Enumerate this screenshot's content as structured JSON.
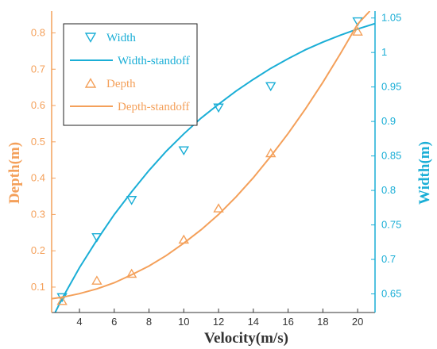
{
  "chart_data": {
    "type": "scatter",
    "xlabel": "Velocity(m/s)",
    "ylabel_left": "Depth(m)",
    "ylabel_right": "Width(m)",
    "xlim": [
      2.4,
      21
    ],
    "ylim_left": [
      0.03,
      0.86
    ],
    "ylim_right": [
      0.623,
      1.06
    ],
    "x_ticks": [
      4,
      6,
      8,
      10,
      12,
      14,
      16,
      18,
      20
    ],
    "x_tick_labels": [
      "4",
      "6",
      "8",
      "10",
      "12",
      "14",
      "16",
      "18",
      "20"
    ],
    "y_left_ticks": [
      0.1,
      0.2,
      0.3,
      0.4,
      0.5,
      0.6,
      0.7,
      0.8
    ],
    "y_left_tick_labels": [
      "0.1",
      "0.2",
      "0.3",
      "0.4",
      "0.5",
      "0.6",
      "0.7",
      "0.8"
    ],
    "y_right_ticks": [
      0.65,
      0.7,
      0.75,
      0.8,
      0.85,
      0.9,
      0.95,
      1,
      1.05
    ],
    "y_right_tick_labels": [
      "0.65",
      "0.7",
      "0.75",
      "0.8",
      "0.85",
      "0.9",
      "0.95",
      "1",
      "1.05"
    ],
    "grid": false,
    "legend_position": "top-left",
    "colors": {
      "depth": "#f4a05a",
      "width": "#1aaed6",
      "axis": "#333333"
    },
    "series": [
      {
        "name": "Width",
        "axis": "right",
        "marker": "triangle-down",
        "x": [
          3,
          5,
          7,
          10,
          12,
          15,
          20
        ],
        "y": [
          0.645,
          0.732,
          0.786,
          0.858,
          0.92,
          0.951,
          1.045
        ]
      },
      {
        "name": "Width-standoff",
        "axis": "right",
        "line": true,
        "x": [
          2.6,
          3,
          4,
          5,
          6,
          7,
          8,
          9,
          10,
          11,
          12,
          13,
          14,
          15,
          16,
          17,
          18,
          19,
          20,
          21
        ],
        "y": [
          0.623,
          0.643,
          0.688,
          0.728,
          0.765,
          0.798,
          0.829,
          0.857,
          0.882,
          0.905,
          0.925,
          0.944,
          0.961,
          0.977,
          0.991,
          1.004,
          1.015,
          1.025,
          1.034,
          1.042
        ]
      },
      {
        "name": "Depth",
        "axis": "left",
        "marker": "triangle-up",
        "x": [
          3,
          5,
          7,
          10,
          12,
          15,
          20
        ],
        "y": [
          0.062,
          0.118,
          0.137,
          0.231,
          0.317,
          0.469,
          0.804
        ]
      },
      {
        "name": "Depth-standoff",
        "axis": "left",
        "line": true,
        "x": [
          2.4,
          3,
          4,
          5,
          6,
          7,
          8,
          9,
          10,
          11,
          12,
          13,
          14,
          15,
          16,
          17,
          18,
          19,
          20,
          20.7
        ],
        "y": [
          0.068,
          0.072,
          0.082,
          0.095,
          0.112,
          0.134,
          0.158,
          0.187,
          0.221,
          0.258,
          0.3,
          0.348,
          0.401,
          0.46,
          0.523,
          0.591,
          0.664,
          0.742,
          0.824,
          0.86
        ]
      }
    ]
  }
}
